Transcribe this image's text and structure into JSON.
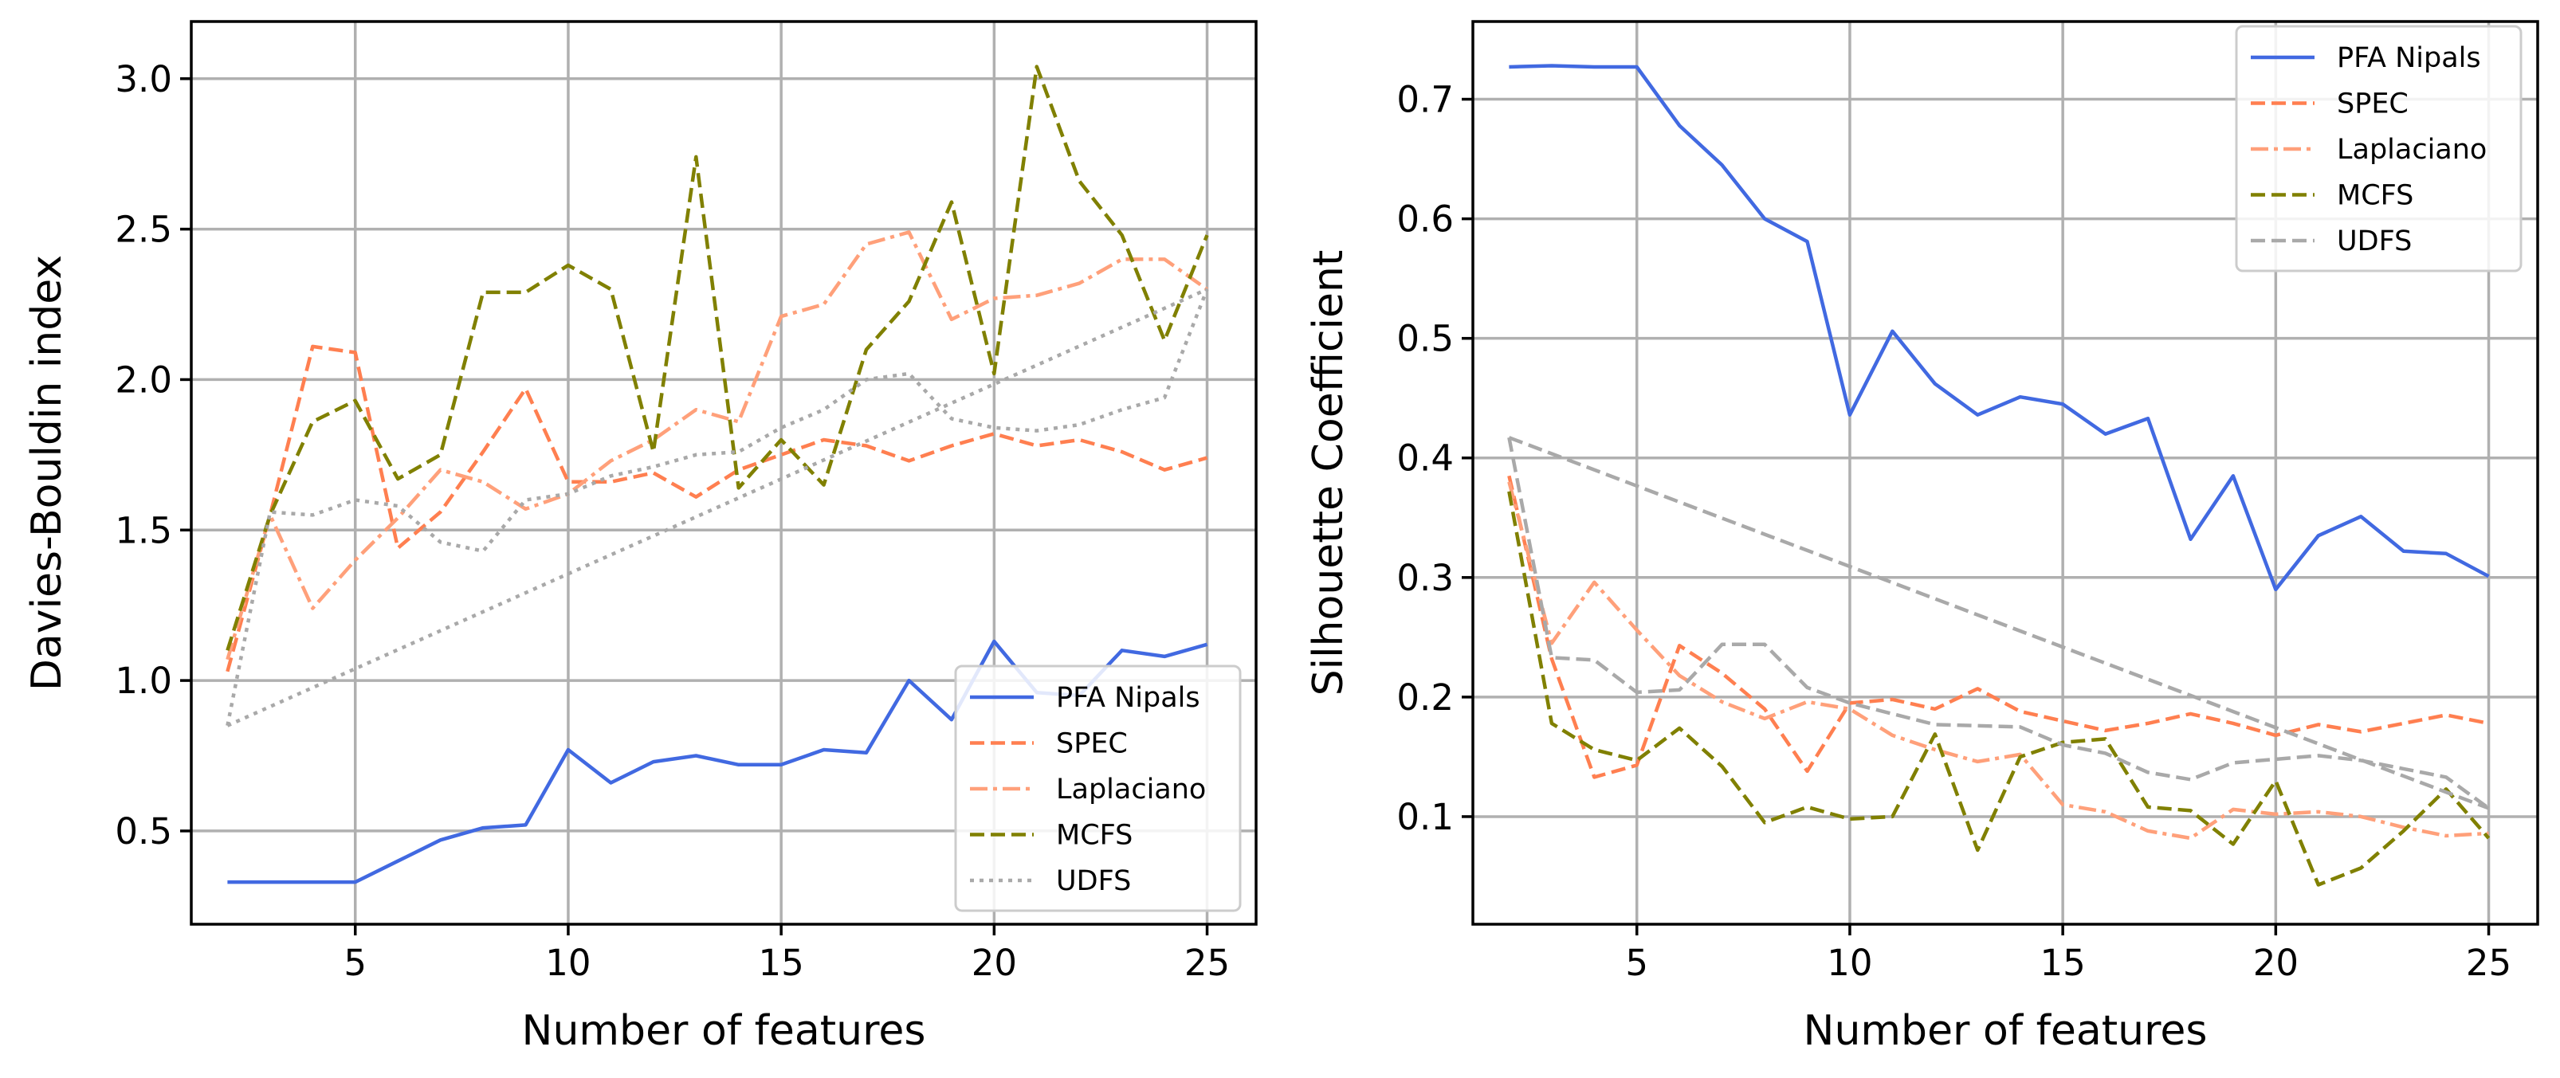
{
  "figure": {
    "panels": [
      "left",
      "right"
    ]
  },
  "chart_data": [
    {
      "type": "line",
      "xlabel": "Number of features",
      "ylabel": "Davies-Bouldin index",
      "xlim": [
        1.15,
        26.15
      ],
      "ylim": [
        0.19,
        3.19
      ],
      "xticks": [
        5,
        10,
        15,
        20,
        25
      ],
      "yticks": [
        0.5,
        1.0,
        1.5,
        2.0,
        2.5,
        3.0
      ],
      "ytick_labels": [
        "0.5",
        "1.0",
        "1.5",
        "2.0",
        "2.5",
        "3.0"
      ],
      "grid": true,
      "legend_position": "lower-right",
      "series": [
        {
          "name": "PFA Nipals",
          "color": "#4169E1",
          "dash": "solid",
          "x": [
            2,
            3,
            4,
            5,
            6,
            7,
            8,
            9,
            10,
            11,
            12,
            13,
            14,
            15,
            16,
            17,
            18,
            19,
            20,
            21,
            22,
            23,
            24,
            25
          ],
          "y": [
            0.33,
            0.33,
            0.33,
            0.33,
            0.4,
            0.47,
            0.51,
            0.52,
            0.77,
            0.66,
            0.73,
            0.75,
            0.72,
            0.72,
            0.77,
            0.76,
            1.0,
            0.87,
            1.13,
            0.96,
            0.95,
            1.1,
            1.08,
            1.12
          ]
        },
        {
          "name": "SPEC",
          "color": "#FF7F50",
          "dash": "dashed",
          "x": [
            2,
            3,
            4,
            5,
            6,
            7,
            8,
            9,
            10,
            11,
            12,
            13,
            14,
            15,
            16,
            17,
            18,
            19,
            20,
            21,
            22,
            23,
            24,
            25
          ],
          "y": [
            1.03,
            1.55,
            2.11,
            2.09,
            1.44,
            1.56,
            1.76,
            1.97,
            1.66,
            1.66,
            1.69,
            1.61,
            1.7,
            1.75,
            1.8,
            1.78,
            1.73,
            1.78,
            1.82,
            1.78,
            1.8,
            1.76,
            1.7,
            1.74
          ]
        },
        {
          "name": "Laplaciano",
          "color": "#FFA07A",
          "dash": "dashdot",
          "x": [
            2,
            3,
            4,
            5,
            6,
            7,
            8,
            9,
            10,
            11,
            12,
            13,
            14,
            15,
            16,
            17,
            18,
            19,
            20,
            21,
            22,
            23,
            24,
            25
          ],
          "y": [
            1.07,
            1.55,
            1.24,
            1.4,
            1.54,
            1.7,
            1.66,
            1.57,
            1.62,
            1.73,
            1.8,
            1.9,
            1.86,
            2.21,
            2.25,
            2.45,
            2.49,
            2.2,
            2.27,
            2.28,
            2.32,
            2.4,
            2.4,
            2.3
          ]
        },
        {
          "name": "MCFS",
          "color": "#808000",
          "dash": "dashed",
          "x": [
            2,
            3,
            4,
            5,
            6,
            7,
            8,
            9,
            10,
            11,
            12,
            13,
            14,
            15,
            16,
            17,
            18,
            19,
            20,
            21,
            22,
            23,
            24,
            25
          ],
          "y": [
            1.1,
            1.55,
            1.86,
            1.93,
            1.67,
            1.75,
            2.29,
            2.29,
            2.38,
            2.3,
            1.76,
            2.74,
            1.64,
            1.8,
            1.65,
            2.1,
            2.26,
            2.59,
            2.02,
            3.04,
            2.66,
            2.48,
            2.13,
            2.48
          ]
        },
        {
          "name": "UDFS",
          "color": "#A9A9A9",
          "dash": "dotted",
          "x": [
            2,
            3,
            4,
            5,
            6,
            7,
            8,
            9,
            10,
            11,
            12,
            13,
            14,
            15,
            16,
            17,
            18,
            19,
            20,
            21,
            22,
            23,
            24,
            25
          ],
          "y": [
            0.85,
            1.56,
            1.55,
            1.6,
            1.58,
            1.46,
            1.43,
            1.6,
            1.62,
            1.68,
            1.71,
            1.75,
            1.76,
            1.84,
            1.9,
            2.0,
            2.02,
            1.87,
            1.84,
            1.83,
            1.85,
            1.9,
            1.94,
            2.3
          ]
        },
        {
          "name": "UDFS trend",
          "legend": false,
          "color": "#A9A9A9",
          "dash": "dotted",
          "x": [
            2,
            25
          ],
          "y": [
            0.85,
            2.3
          ]
        }
      ]
    },
    {
      "type": "line",
      "xlabel": "Number of features",
      "ylabel": "Silhouette Coefficient",
      "xlim": [
        1.15,
        26.15
      ],
      "ylim": [
        0.01,
        0.765
      ],
      "xticks": [
        5,
        10,
        15,
        20,
        25
      ],
      "yticks": [
        0.1,
        0.2,
        0.3,
        0.4,
        0.5,
        0.6,
        0.7
      ],
      "ytick_labels": [
        "0.1",
        "0.2",
        "0.3",
        "0.4",
        "0.5",
        "0.6",
        "0.7"
      ],
      "grid": true,
      "legend_position": "top-right",
      "series": [
        {
          "name": "PFA Nipals",
          "color": "#4169E1",
          "dash": "solid",
          "x": [
            2,
            3,
            4,
            5,
            6,
            7,
            8,
            9,
            10,
            11,
            12,
            13,
            14,
            15,
            16,
            17,
            18,
            19,
            20,
            21,
            22,
            23,
            24,
            25
          ],
          "y": [
            0.727,
            0.728,
            0.727,
            0.727,
            0.678,
            0.645,
            0.6,
            0.581,
            0.436,
            0.506,
            0.462,
            0.436,
            0.451,
            0.445,
            0.42,
            0.433,
            0.332,
            0.385,
            0.29,
            0.335,
            0.351,
            0.322,
            0.32,
            0.301
          ]
        },
        {
          "name": "SPEC",
          "color": "#FF7F50",
          "dash": "dashed",
          "x": [
            2,
            3,
            4,
            5,
            6,
            7,
            8,
            9,
            10,
            11,
            12,
            13,
            14,
            15,
            16,
            17,
            18,
            19,
            20,
            21,
            22,
            23,
            24,
            25
          ],
          "y": [
            0.385,
            0.232,
            0.133,
            0.143,
            0.243,
            0.22,
            0.19,
            0.138,
            0.195,
            0.198,
            0.19,
            0.207,
            0.188,
            0.18,
            0.172,
            0.178,
            0.186,
            0.178,
            0.168,
            0.177,
            0.171,
            0.178,
            0.185,
            0.178
          ]
        },
        {
          "name": "Laplaciano",
          "color": "#FFA07A",
          "dash": "dashdot",
          "x": [
            2,
            3,
            4,
            5,
            6,
            7,
            8,
            9,
            10,
            11,
            12,
            13,
            14,
            15,
            16,
            17,
            18,
            19,
            20,
            21,
            22,
            23,
            24,
            25
          ],
          "y": [
            0.38,
            0.245,
            0.296,
            0.256,
            0.218,
            0.196,
            0.182,
            0.196,
            0.19,
            0.168,
            0.156,
            0.146,
            0.152,
            0.11,
            0.104,
            0.088,
            0.082,
            0.106,
            0.102,
            0.104,
            0.1,
            0.091,
            0.084,
            0.086
          ]
        },
        {
          "name": "MCFS",
          "color": "#808000",
          "dash": "dashed",
          "x": [
            2,
            3,
            4,
            5,
            6,
            7,
            8,
            9,
            10,
            11,
            12,
            13,
            14,
            15,
            16,
            17,
            18,
            19,
            20,
            21,
            22,
            23,
            24,
            25
          ],
          "y": [
            0.372,
            0.178,
            0.156,
            0.147,
            0.174,
            0.142,
            0.095,
            0.108,
            0.098,
            0.1,
            0.169,
            0.072,
            0.15,
            0.162,
            0.165,
            0.108,
            0.105,
            0.077,
            0.13,
            0.043,
            0.057,
            0.088,
            0.123,
            0.082
          ]
        },
        {
          "name": "UDFS",
          "color": "#A9A9A9",
          "dash": "dashed",
          "x": [
            2,
            3,
            4,
            5,
            6,
            7,
            8,
            9,
            10,
            11,
            12,
            13,
            14,
            15,
            16,
            17,
            18,
            19,
            20,
            21,
            22,
            23,
            24,
            25
          ],
          "y": [
            0.417,
            0.233,
            0.231,
            0.204,
            0.206,
            0.244,
            0.244,
            0.208,
            0.195,
            0.186,
            0.177,
            0.176,
            0.175,
            0.16,
            0.153,
            0.137,
            0.131,
            0.145,
            0.148,
            0.151,
            0.147,
            0.14,
            0.133,
            0.107
          ]
        },
        {
          "name": "UDFS trend",
          "legend": false,
          "color": "#A9A9A9",
          "dash": "dashed",
          "x": [
            2,
            25
          ],
          "y": [
            0.417,
            0.107
          ]
        }
      ]
    }
  ]
}
